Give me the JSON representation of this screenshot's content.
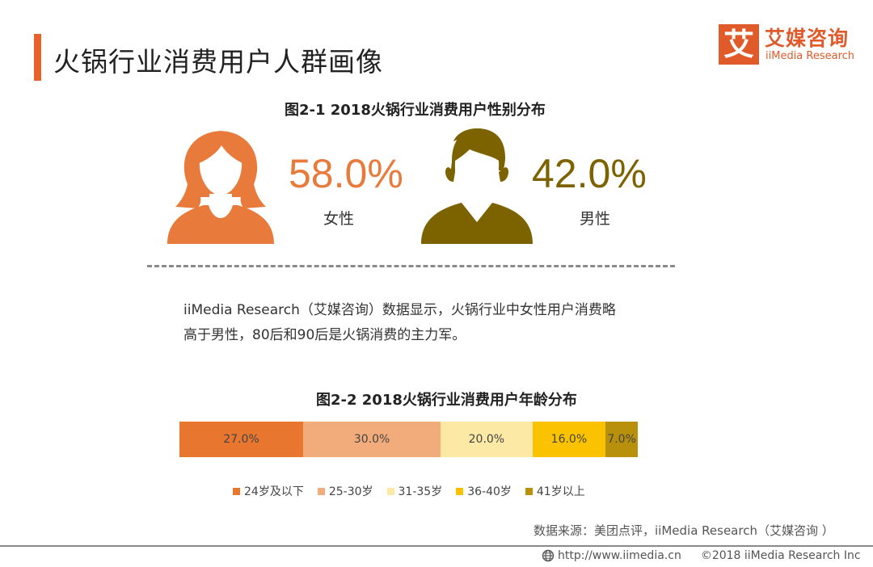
{
  "page": {
    "title": "火锅行业消费用户人群画像"
  },
  "logo": {
    "mark": "艾",
    "name_cn": "艾媒咨询",
    "name_en": "iiMedia Research"
  },
  "fig1": {
    "title": "图2-1  2018火锅行业消费用户性别分布",
    "female": {
      "percent": "58.0%",
      "label": "女性",
      "value": 58.0
    },
    "male": {
      "percent": "42.0%",
      "label": "男性",
      "value": 42.0
    }
  },
  "description": {
    "line1": "iiMedia Research（艾媒咨询）数据显示，火锅行业中女性用户消费略",
    "line2": "高于男性，80后和90后是火锅消费的主力军。"
  },
  "fig2": {
    "title": "图2-2 2018火锅行业消费用户年龄分布"
  },
  "chart_data": [
    {
      "type": "pie",
      "title": "图2-1  2018火锅行业消费用户性别分布",
      "categories": [
        "女性",
        "男性"
      ],
      "values": [
        58.0,
        42.0
      ],
      "colors": [
        "#e87b3b",
        "#7d6200"
      ]
    },
    {
      "type": "bar",
      "stacked": true,
      "orientation": "horizontal",
      "title": "图2-2 2018火锅行业消费用户年龄分布",
      "series": [
        {
          "name": "24岁及以下",
          "values": [
            27.0
          ],
          "label": "27.0%",
          "color": "#e8762f"
        },
        {
          "name": "25-30岁",
          "values": [
            30.0
          ],
          "label": "30.0%",
          "color": "#f2ac7c"
        },
        {
          "name": "31-35岁",
          "values": [
            20.0
          ],
          "label": "20.0%",
          "color": "#fde9a6"
        },
        {
          "name": "36-40岁",
          "values": [
            16.0
          ],
          "label": "16.0%",
          "color": "#fbc200"
        },
        {
          "name": "41岁以上",
          "values": [
            7.0
          ],
          "label": "7.0%",
          "color": "#b8900c"
        }
      ],
      "legend": "bottom"
    }
  ],
  "source": "数据来源：美团点评，iiMedia  Research（艾媒咨询 ）",
  "footer": {
    "url": "http://www.iimedia.cn",
    "copyright": "©2018  iiMedia Research  Inc"
  }
}
